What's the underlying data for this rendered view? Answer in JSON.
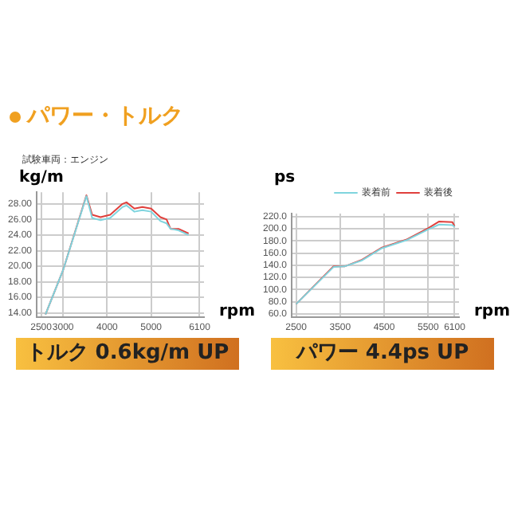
{
  "chart_data": [
    {
      "type": "line",
      "title": "パワー・トルク",
      "subtitle": "試験車両：エンジン",
      "ylabel": "kg/m",
      "xlabel": "rpm",
      "xlim": [
        2400,
        6200
      ],
      "xticks": [
        2500,
        3000,
        4000,
        5000,
        6100
      ],
      "ylim": [
        13.5,
        29.5
      ],
      "yticks": [
        {
          "value": 14,
          "label": "14.00"
        },
        {
          "value": 16,
          "label": "16.00"
        },
        {
          "value": 18,
          "label": "18.00"
        },
        {
          "value": 20,
          "label": "20.00"
        },
        {
          "value": 22,
          "label": "22.00"
        },
        {
          "value": 24,
          "label": "24.00"
        },
        {
          "value": 26,
          "label": "26.00"
        },
        {
          "value": 28,
          "label": "28.00"
        }
      ],
      "grid": true,
      "marker": "none",
      "annotations": [
        "トルク 0.6kg/m UP"
      ],
      "series": [
        {
          "color": "#7fd4de",
          "x": [
            2600,
            3000,
            3530,
            3660,
            3850,
            4070,
            4350,
            4440,
            4620,
            4800,
            5000,
            5210,
            5350,
            5440,
            5620,
            5850
          ],
          "values": [
            13.8,
            19.5,
            29.0,
            26.2,
            25.9,
            26.2,
            27.6,
            27.8,
            27.0,
            27.2,
            27.0,
            25.8,
            25.5,
            24.8,
            24.6,
            24.0
          ]
        },
        {
          "color": "#e0403c",
          "x": [
            2600,
            3000,
            3530,
            3660,
            3850,
            4070,
            4350,
            4440,
            4620,
            4800,
            5000,
            5210,
            5350,
            5440,
            5620,
            5850
          ],
          "values": [
            13.8,
            19.5,
            29.1,
            26.6,
            26.3,
            26.6,
            28.0,
            28.2,
            27.4,
            27.6,
            27.4,
            26.3,
            26.0,
            24.8,
            24.8,
            24.2
          ]
        }
      ]
    },
    {
      "type": "line",
      "ylabel": "ps",
      "xlabel": "rpm",
      "xlim": [
        2400,
        6200
      ],
      "xticks": [
        2500,
        3500,
        4500,
        5500,
        6100
      ],
      "ylim": [
        55,
        225
      ],
      "yticks": [
        {
          "value": 60,
          "label": "60.0"
        },
        {
          "value": 80,
          "label": "80.0"
        },
        {
          "value": 100,
          "label": "100.0"
        },
        {
          "value": 120,
          "label": "120.0"
        },
        {
          "value": 140,
          "label": "140.0"
        },
        {
          "value": 160,
          "label": "160.0"
        },
        {
          "value": 180,
          "label": "180.0"
        },
        {
          "value": 200,
          "label": "200.0"
        },
        {
          "value": 220,
          "label": "220.0"
        }
      ],
      "grid": true,
      "marker": "none",
      "legend": "top right",
      "annotations": [
        "パワー 4.4ps UP"
      ],
      "series": [
        {
          "name": "装着前",
          "color": "#7fd4de",
          "x": [
            2500,
            3350,
            3600,
            4000,
            4450,
            5000,
            5500,
            5750,
            6050,
            6100
          ],
          "values": [
            76,
            137,
            138,
            148,
            168,
            181,
            199,
            207,
            206,
            203
          ]
        },
        {
          "name": "装着後",
          "color": "#e0403c",
          "x": [
            2500,
            3350,
            3600,
            4000,
            4450,
            5000,
            5500,
            5750,
            6050,
            6100
          ],
          "values": [
            76,
            138,
            138,
            149,
            169,
            182,
            201,
            212,
            211,
            204
          ]
        }
      ]
    }
  ]
}
